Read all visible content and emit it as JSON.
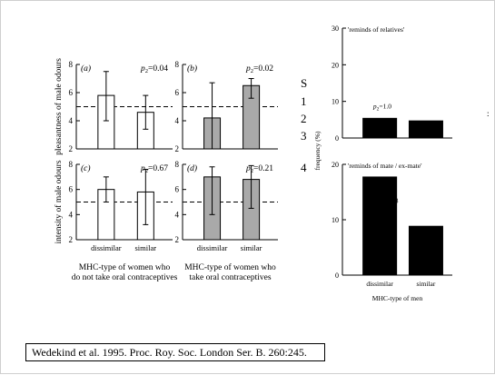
{
  "citation": "Wedekind et al. 1995. Proc. Roy. Soc. London Ser. B. 260:245.",
  "side_labels": [
    "S",
    "1",
    "2",
    "3",
    "4"
  ],
  "stray_mark": ":",
  "left_figure": {
    "row_ylabels": [
      "pleasantness of male odours",
      "intensity of male odours"
    ],
    "group_captions": [
      [
        "MHC-type of women who",
        "do not take oral contraceptives"
      ],
      [
        "MHC-type of women who",
        "take oral contraceptives"
      ]
    ],
    "fill_colors": {
      "open": "#ffffff",
      "shaded": "#a9a9a9"
    }
  },
  "right_figure": {
    "ylabel": "frequency (%)",
    "xlabel": "MHC-type of men"
  },
  "chart_data": [
    {
      "type": "bar",
      "panel": "(a)",
      "categories": [
        "dissimilar",
        "similar"
      ],
      "values": [
        5.8,
        4.6
      ],
      "error_low": [
        4.0,
        3.4
      ],
      "error_high": [
        7.5,
        5.8
      ],
      "reference_line": 5,
      "ylim": [
        2,
        8
      ],
      "yticks": [
        2,
        4,
        6,
        8
      ],
      "p_value": "=0.04",
      "fill": "open"
    },
    {
      "type": "bar",
      "panel": "(b)",
      "categories": [
        "dissimilar",
        "similar"
      ],
      "values": [
        4.2,
        6.5
      ],
      "error_low": [
        2.0,
        5.6
      ],
      "error_high": [
        6.7,
        7.0
      ],
      "reference_line": 5,
      "ylim": [
        2,
        8
      ],
      "yticks": [
        2,
        4,
        6,
        8
      ],
      "p_value": "=0.02",
      "fill": "shaded"
    },
    {
      "type": "bar",
      "panel": "(c)",
      "categories": [
        "dissimilar",
        "similar"
      ],
      "values": [
        6.0,
        5.8
      ],
      "error_low": [
        5.0,
        3.2
      ],
      "error_high": [
        7.0,
        7.6
      ],
      "reference_line": 5,
      "ylim": [
        2,
        8
      ],
      "yticks": [
        2,
        4,
        6,
        8
      ],
      "p_value": "=0.67",
      "fill": "open"
    },
    {
      "type": "bar",
      "panel": "(d)",
      "categories": [
        "dissimilar",
        "similar"
      ],
      "values": [
        7.0,
        6.8
      ],
      "error_low": [
        4.0,
        4.5
      ],
      "error_high": [
        7.8,
        7.9
      ],
      "reference_line": 5,
      "ylim": [
        2,
        8
      ],
      "yticks": [
        2,
        4,
        6,
        8
      ],
      "p_value": "=0.21",
      "fill": "shaded"
    },
    {
      "type": "bar",
      "title": "'reminds of relatives'",
      "categories": [
        "dissimilar",
        "similar"
      ],
      "values": [
        5.5,
        4.8
      ],
      "ylim": [
        0,
        30
      ],
      "yticks": [
        0,
        10,
        20,
        30
      ],
      "p_value": "=1.0"
    },
    {
      "type": "bar",
      "title": "'reminds of mate / ex-mate'",
      "categories": [
        "dissimilar",
        "similar"
      ],
      "values": [
        17.8,
        8.9
      ],
      "ylim": [
        0,
        20
      ],
      "yticks": [
        0,
        10,
        20
      ],
      "p_value": "=0.038"
    }
  ]
}
